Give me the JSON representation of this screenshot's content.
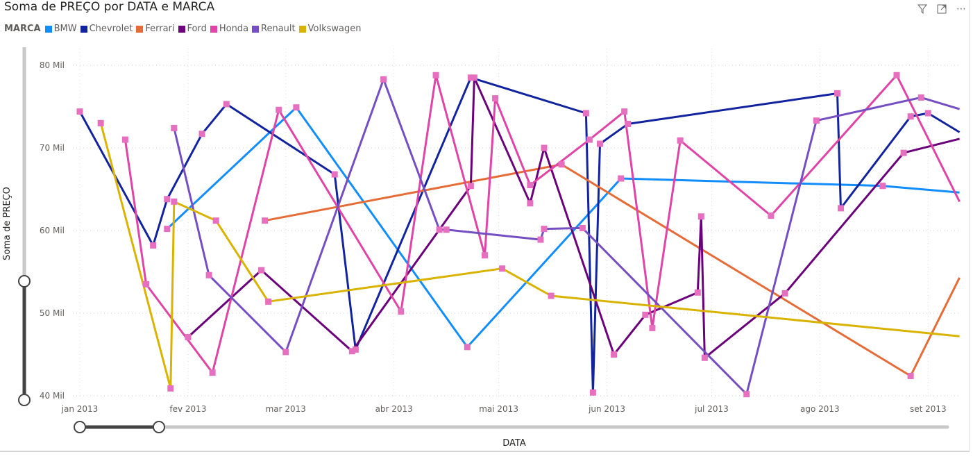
{
  "title": "Soma de PREÇO por DATA e MARCA",
  "header_icons": [
    "filter-icon",
    "focus-mode-icon",
    "more-options-icon"
  ],
  "marker_color": "#E66FBF",
  "chart_data": {
    "type": "line",
    "title": "Soma de PREÇO por DATA e MARCA",
    "xlabel": "DATA",
    "ylabel": "Soma de PREÇO",
    "legend_title": "MARCA",
    "legend_position": "top-left",
    "grid": true,
    "ylim": [
      40000,
      80000
    ],
    "yticks": [
      {
        "v": 80000,
        "label": "80 Mil"
      },
      {
        "v": 70000,
        "label": "70 Mil"
      },
      {
        "v": 60000,
        "label": "60 Mil"
      },
      {
        "v": 50000,
        "label": "50 Mil"
      },
      {
        "v": 40000,
        "label": "40 Mil"
      }
    ],
    "xlim": [
      "2013-01-01",
      "2013-09-10"
    ],
    "xticks": [
      {
        "d": "2013-01-01",
        "label": "jan 2013"
      },
      {
        "d": "2013-02-01",
        "label": "fev 2013"
      },
      {
        "d": "2013-03-01",
        "label": "mar 2013"
      },
      {
        "d": "2013-04-01",
        "label": "abr 2013"
      },
      {
        "d": "2013-05-01",
        "label": "mai 2013"
      },
      {
        "d": "2013-06-01",
        "label": "jun 2013"
      },
      {
        "d": "2013-07-01",
        "label": "jul 2013"
      },
      {
        "d": "2013-08-01",
        "label": "ago 2013"
      },
      {
        "d": "2013-09-01",
        "label": "set 2013"
      }
    ],
    "series": [
      {
        "name": "BMW",
        "color": "#118DFF",
        "points": [
          [
            "2013-01-26",
            60200
          ],
          [
            "2013-03-04",
            74900
          ],
          [
            "2013-04-22",
            45900
          ],
          [
            "2013-06-05",
            66300
          ],
          [
            "2013-08-19",
            65400
          ],
          [
            "2013-09-10",
            64600
          ]
        ]
      },
      {
        "name": "Chevrolet",
        "color": "#12239E",
        "points": [
          [
            "2013-01-01",
            74400
          ],
          [
            "2013-01-22",
            58200
          ],
          [
            "2013-01-26",
            63800
          ],
          [
            "2013-02-05",
            71700
          ],
          [
            "2013-02-12",
            75300
          ],
          [
            "2013-03-15",
            66800
          ],
          [
            "2013-03-21",
            45600
          ],
          [
            "2013-04-23",
            78500
          ],
          [
            "2013-05-26",
            74200
          ],
          [
            "2013-05-28",
            40400
          ],
          [
            "2013-05-30",
            70500
          ],
          [
            "2013-06-07",
            72900
          ],
          [
            "2013-08-06",
            76600
          ],
          [
            "2013-08-07",
            62700
          ],
          [
            "2013-08-27",
            73800
          ],
          [
            "2013-09-01",
            74200
          ],
          [
            "2013-09-10",
            71900
          ]
        ]
      },
      {
        "name": "Ferrari",
        "color": "#E66C37",
        "points": [
          [
            "2013-02-23",
            61200
          ],
          [
            "2013-05-19",
            68000
          ],
          [
            "2013-08-27",
            42400
          ],
          [
            "2013-09-10",
            54300
          ]
        ]
      },
      {
        "name": "Ford",
        "color": "#6B007B",
        "points": [
          [
            "2013-02-01",
            47100
          ],
          [
            "2013-02-22",
            55200
          ],
          [
            "2013-03-20",
            45400
          ],
          [
            "2013-04-23",
            65400
          ],
          [
            "2013-04-24",
            78500
          ],
          [
            "2013-05-10",
            63300
          ],
          [
            "2013-05-14",
            70000
          ],
          [
            "2013-06-03",
            45000
          ],
          [
            "2013-06-12",
            49800
          ],
          [
            "2013-06-27",
            52500
          ],
          [
            "2013-06-28",
            61700
          ],
          [
            "2013-06-29",
            44600
          ],
          [
            "2013-07-22",
            52400
          ],
          [
            "2013-08-25",
            69400
          ],
          [
            "2013-09-10",
            71100
          ]
        ]
      },
      {
        "name": "Honda",
        "color": "#E044A7",
        "points": [
          [
            "2013-01-14",
            71000
          ],
          [
            "2013-01-20",
            53500
          ],
          [
            "2013-02-08",
            42800
          ],
          [
            "2013-02-27",
            74600
          ],
          [
            "2013-04-03",
            50200
          ],
          [
            "2013-04-13",
            78800
          ],
          [
            "2013-04-27",
            57000
          ],
          [
            "2013-04-30",
            76000
          ],
          [
            "2013-05-10",
            65500
          ],
          [
            "2013-05-27",
            71000
          ],
          [
            "2013-06-06",
            74400
          ],
          [
            "2013-06-14",
            48200
          ],
          [
            "2013-06-22",
            70900
          ],
          [
            "2013-07-18",
            61800
          ],
          [
            "2013-08-23",
            78800
          ],
          [
            "2013-09-10",
            63500
          ]
        ]
      },
      {
        "name": "Renault",
        "color": "#744EC2",
        "points": [
          [
            "2013-01-28",
            72400
          ],
          [
            "2013-02-07",
            54600
          ],
          [
            "2013-03-01",
            45300
          ],
          [
            "2013-03-29",
            78300
          ],
          [
            "2013-04-14",
            60100
          ],
          [
            "2013-04-16",
            60100
          ],
          [
            "2013-05-13",
            58900
          ],
          [
            "2013-05-14",
            60200
          ],
          [
            "2013-05-25",
            60300
          ],
          [
            "2013-07-11",
            40200
          ],
          [
            "2013-07-31",
            73300
          ],
          [
            "2013-08-30",
            76100
          ],
          [
            "2013-09-10",
            74700
          ]
        ]
      },
      {
        "name": "Volkswagen",
        "color": "#D9B300",
        "points": [
          [
            "2013-01-07",
            73000
          ],
          [
            "2013-01-27",
            40900
          ],
          [
            "2013-01-28",
            63500
          ],
          [
            "2013-02-09",
            61200
          ],
          [
            "2013-02-24",
            51400
          ],
          [
            "2013-05-02",
            55400
          ],
          [
            "2013-05-16",
            52100
          ],
          [
            "2013-09-10",
            47200
          ]
        ]
      }
    ]
  }
}
